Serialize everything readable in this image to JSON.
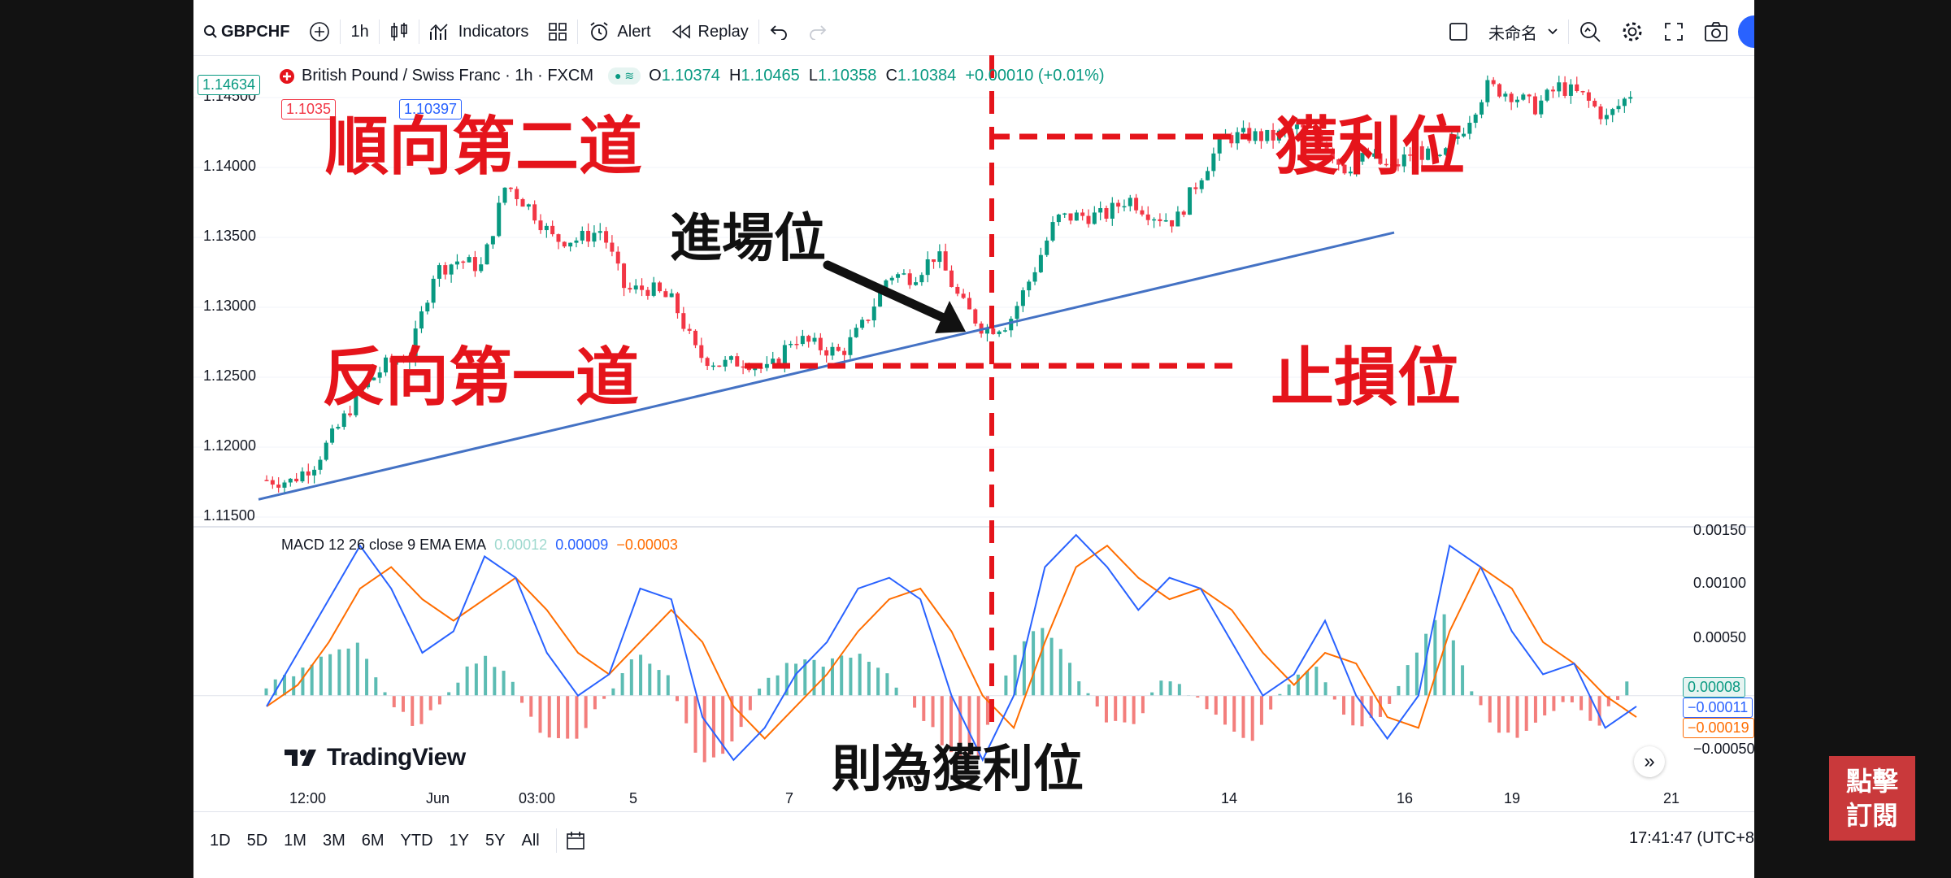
{
  "toolbar": {
    "symbol": "GBPCHF",
    "interval": "1h",
    "indicators_label": "Indicators",
    "alert_label": "Alert",
    "replay_label": "Replay",
    "layout_name": "未命名"
  },
  "legend": {
    "title": "British Pound / Swiss Franc · 1h · FXCM",
    "o_label": "O",
    "o_value": "1.10374",
    "h_label": "H",
    "h_value": "1.10465",
    "l_label": "L",
    "l_value": "1.10358",
    "c_label": "C",
    "c_value": "1.10384",
    "change": "+0.00010 (+0.01%)",
    "sell_price": "1.1035",
    "buy_price": "1.10397",
    "last_price_tag": "1.14634"
  },
  "price_axis": [
    "1.14500",
    "1.14000",
    "1.13500",
    "1.13000",
    "1.12500",
    "1.12000",
    "1.11500"
  ],
  "macd": {
    "title": "MACD 12 26 close 9 EMA EMA",
    "hist_value": "0.00012",
    "macd_value": "0.00009",
    "signal_value": "−0.00003",
    "axis": [
      "0.00150",
      "0.00100",
      "0.00050",
      "−0.00050"
    ],
    "tag_hist": "0.00008",
    "tag_macd": "−0.00011",
    "tag_signal": "−0.00019"
  },
  "time_axis": [
    "12:00",
    "Jun",
    "03:00",
    "5",
    "7",
    "14",
    "16",
    "19",
    "21"
  ],
  "timeframes": [
    "1D",
    "5D",
    "1M",
    "3M",
    "6M",
    "YTD",
    "1Y",
    "5Y",
    "All"
  ],
  "clock": "17:41:47 (UTC+8",
  "watermark": "TradingView",
  "annotations": {
    "with_trend": "順向第二道",
    "take_profit": "獲利位",
    "entry": "進場位",
    "against_trend": "反向第一道",
    "stop_loss": "止損位",
    "then_take_profit": "則為獲利位"
  },
  "subscribe": {
    "line1": "點擊",
    "line2": "訂閱"
  },
  "colors": {
    "up": "#089981",
    "down": "#f23645",
    "annotation_red": "#e5141b",
    "trendline": "#4472c4",
    "macd_line": "#2962ff",
    "signal_line": "#ff6d00",
    "hist_up": "#26a69a",
    "hist_down": "#ef5350"
  },
  "chart_data": {
    "type": "line",
    "price_range": [
      1.115,
      1.146
    ],
    "price_path": [
      1.1172,
      1.1171,
      1.1184,
      1.121,
      1.1238,
      1.1255,
      1.1262,
      1.1322,
      1.133,
      1.1325,
      1.1385,
      1.1368,
      1.1345,
      1.1345,
      1.1352,
      1.1308,
      1.131,
      1.13,
      1.1262,
      1.1255,
      1.1258,
      1.125,
      1.1275,
      1.1268,
      1.1263,
      1.1285,
      1.132,
      1.1318,
      1.1335,
      1.13,
      1.128,
      1.1285,
      1.132,
      1.136,
      1.1362,
      1.1362,
      1.1375,
      1.1363,
      1.1358,
      1.139,
      1.1418,
      1.142,
      1.1418,
      1.1425,
      1.142,
      1.1396,
      1.1405,
      1.1395,
      1.141,
      1.14,
      1.1425,
      1.1455,
      1.145,
      1.144,
      1.1455,
      1.1448,
      1.1432,
      1.145
    ],
    "trendline": [
      [
        0,
        1.1158
      ],
      [
        1,
        1.135
      ]
    ],
    "macd_range": [
      -0.0007,
      0.0015
    ],
    "macd_line": [
      -0.0001,
      0.0004,
      0.0009,
      0.0014,
      0.001,
      0.0004,
      0.0006,
      0.0013,
      0.0011,
      0.0004,
      0.0,
      0.0002,
      0.001,
      0.0009,
      -0.0002,
      -0.0006,
      -0.0003,
      0.0002,
      0.0005,
      0.001,
      0.0011,
      0.0009,
      0.0,
      -0.0006,
      0.0,
      0.0012,
      0.0015,
      0.0012,
      0.0008,
      0.0011,
      0.001,
      0.0005,
      0.0,
      0.0002,
      0.0007,
      0.0,
      -0.0004,
      0.0,
      0.0014,
      0.0012,
      0.0006,
      0.0002,
      0.0003,
      -0.0003,
      -0.0001
    ],
    "signal_line": [
      -0.0001,
      0.0001,
      0.0005,
      0.001,
      0.0012,
      0.0009,
      0.0007,
      0.0009,
      0.0011,
      0.0008,
      0.0004,
      0.0002,
      0.0005,
      0.0008,
      0.0005,
      -0.0001,
      -0.0004,
      -0.0001,
      0.0002,
      0.0006,
      0.0009,
      0.001,
      0.0006,
      0.0,
      -0.0003,
      0.0005,
      0.0012,
      0.0014,
      0.0011,
      0.0009,
      0.001,
      0.0008,
      0.0004,
      0.0001,
      0.0004,
      0.0003,
      -0.0002,
      -0.0003,
      0.0006,
      0.0012,
      0.001,
      0.0005,
      0.0003,
      0.0,
      -0.0002
    ],
    "histogram": [
      0.0001,
      0.0002,
      0.0004,
      0.0005,
      -0.0001,
      -0.0003,
      0.0001,
      0.0004,
      0.0001,
      -0.0004,
      -0.0004,
      0.0,
      0.0004,
      0.0002,
      -0.0006,
      -0.0005,
      0.0001,
      0.0003,
      0.0003,
      0.0004,
      0.0002,
      -0.0001,
      -0.0005,
      -0.0006,
      0.0003,
      0.0007,
      0.0003,
      -0.0002,
      -0.0003,
      0.0002,
      0.0,
      -0.0003,
      -0.0004,
      0.0001,
      0.0003,
      -0.0003,
      -0.0002,
      0.0003,
      0.0008,
      0.0,
      -0.0004,
      -0.0003,
      0.0,
      -0.0003,
      0.0001
    ]
  }
}
